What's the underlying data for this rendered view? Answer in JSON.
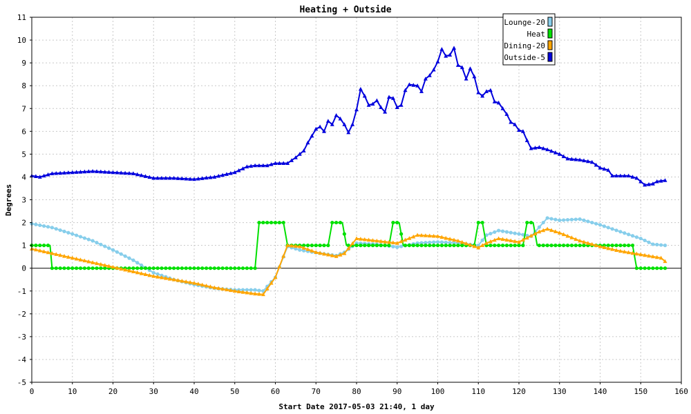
{
  "chart_data": {
    "type": "line",
    "title": "Heating + Outside",
    "xlabel": "Start Date 2017-05-03 21:40, 1 day",
    "ylabel": "Degrees",
    "xlim": [
      0,
      160
    ],
    "ylim": [
      -5,
      11
    ],
    "x_ticks": [
      0,
      10,
      20,
      30,
      40,
      50,
      60,
      70,
      80,
      90,
      100,
      110,
      120,
      130,
      140,
      150,
      160
    ],
    "y_ticks": [
      -5,
      -4,
      -3,
      -2,
      -1,
      0,
      1,
      2,
      3,
      4,
      5,
      6,
      7,
      8,
      9,
      10,
      11
    ],
    "grid": true,
    "legend_position": "top-right",
    "colors": {
      "background": "#ffffff",
      "plot_background": "#ffffff",
      "grid": "#c8c8c8",
      "zero_line": "#000000",
      "frame": "#000000"
    },
    "series": [
      {
        "name": "Lounge-20",
        "color": "#87ceeb",
        "marker": "circle",
        "points": [
          [
            0,
            1.95
          ],
          [
            5,
            1.78
          ],
          [
            10,
            1.5
          ],
          [
            15,
            1.2
          ],
          [
            20,
            0.8
          ],
          [
            25,
            0.35
          ],
          [
            30,
            -0.2
          ],
          [
            35,
            -0.5
          ],
          [
            40,
            -0.72
          ],
          [
            45,
            -0.88
          ],
          [
            50,
            -0.95
          ],
          [
            55,
            -0.95
          ],
          [
            57,
            -1.0
          ],
          [
            60,
            -0.4
          ],
          [
            63,
            0.95
          ],
          [
            66,
            0.8
          ],
          [
            70,
            0.68
          ],
          [
            75,
            0.55
          ],
          [
            77,
            0.7
          ],
          [
            80,
            1.1
          ],
          [
            85,
            1.05
          ],
          [
            90,
            0.92
          ],
          [
            95,
            1.1
          ],
          [
            100,
            1.15
          ],
          [
            105,
            1.1
          ],
          [
            110,
            1.0
          ],
          [
            112,
            1.45
          ],
          [
            115,
            1.65
          ],
          [
            120,
            1.5
          ],
          [
            123,
            1.4
          ],
          [
            127,
            2.2
          ],
          [
            130,
            2.1
          ],
          [
            135,
            2.15
          ],
          [
            140,
            1.9
          ],
          [
            145,
            1.6
          ],
          [
            150,
            1.3
          ],
          [
            153,
            1.05
          ],
          [
            156,
            1.0
          ]
        ]
      },
      {
        "name": "Heat",
        "color": "#00e000",
        "marker": "circle",
        "points": [
          [
            0,
            1
          ],
          [
            4.5,
            1
          ],
          [
            5,
            0
          ],
          [
            55,
            0
          ],
          [
            56,
            2
          ],
          [
            62,
            2
          ],
          [
            63,
            1
          ],
          [
            73,
            1
          ],
          [
            74,
            2
          ],
          [
            76.5,
            2
          ],
          [
            77.5,
            1
          ],
          [
            88,
            1
          ],
          [
            89,
            2
          ],
          [
            90.5,
            2
          ],
          [
            91.5,
            1
          ],
          [
            109,
            1
          ],
          [
            110,
            2
          ],
          [
            111,
            2
          ],
          [
            112,
            1
          ],
          [
            121,
            1
          ],
          [
            122,
            2
          ],
          [
            123.5,
            2
          ],
          [
            124.5,
            1
          ],
          [
            148,
            1
          ],
          [
            149,
            0
          ],
          [
            156,
            0
          ]
        ]
      },
      {
        "name": "Dining-20",
        "color": "#ffa500",
        "marker": "triangle",
        "points": [
          [
            0,
            0.85
          ],
          [
            5,
            0.65
          ],
          [
            10,
            0.45
          ],
          [
            15,
            0.25
          ],
          [
            20,
            0.05
          ],
          [
            25,
            -0.15
          ],
          [
            30,
            -0.35
          ],
          [
            35,
            -0.5
          ],
          [
            40,
            -0.65
          ],
          [
            45,
            -0.85
          ],
          [
            50,
            -1.0
          ],
          [
            55,
            -1.12
          ],
          [
            57,
            -1.15
          ],
          [
            60,
            -0.4
          ],
          [
            63,
            1.0
          ],
          [
            66,
            0.95
          ],
          [
            70,
            0.7
          ],
          [
            75,
            0.52
          ],
          [
            77,
            0.65
          ],
          [
            80,
            1.3
          ],
          [
            85,
            1.2
          ],
          [
            90,
            1.1
          ],
          [
            95,
            1.45
          ],
          [
            100,
            1.4
          ],
          [
            105,
            1.2
          ],
          [
            110,
            0.9
          ],
          [
            112,
            1.1
          ],
          [
            115,
            1.3
          ],
          [
            120,
            1.15
          ],
          [
            125,
            1.6
          ],
          [
            127,
            1.72
          ],
          [
            130,
            1.55
          ],
          [
            135,
            1.2
          ],
          [
            140,
            0.95
          ],
          [
            145,
            0.75
          ],
          [
            150,
            0.6
          ],
          [
            155,
            0.45
          ],
          [
            156,
            0.3
          ]
        ]
      },
      {
        "name": "Outside-5",
        "color": "#0000dd",
        "marker": "triangle",
        "points": [
          [
            0,
            4.05
          ],
          [
            2,
            4.0
          ],
          [
            5,
            4.15
          ],
          [
            10,
            4.2
          ],
          [
            15,
            4.25
          ],
          [
            20,
            4.2
          ],
          [
            25,
            4.15
          ],
          [
            30,
            3.95
          ],
          [
            35,
            3.95
          ],
          [
            40,
            3.9
          ],
          [
            45,
            4.0
          ],
          [
            50,
            4.2
          ],
          [
            53,
            4.45
          ],
          [
            55,
            4.5
          ],
          [
            58,
            4.5
          ],
          [
            60,
            4.6
          ],
          [
            63,
            4.6
          ],
          [
            65,
            4.85
          ],
          [
            67,
            5.15
          ],
          [
            68,
            5.5
          ],
          [
            70,
            6.1
          ],
          [
            71,
            6.2
          ],
          [
            72,
            6.0
          ],
          [
            73,
            6.45
          ],
          [
            74,
            6.3
          ],
          [
            75,
            6.7
          ],
          [
            76,
            6.55
          ],
          [
            77,
            6.3
          ],
          [
            78,
            5.95
          ],
          [
            79,
            6.3
          ],
          [
            80,
            6.95
          ],
          [
            81,
            7.85
          ],
          [
            82,
            7.55
          ],
          [
            83,
            7.15
          ],
          [
            84,
            7.2
          ],
          [
            85,
            7.35
          ],
          [
            86,
            7.05
          ],
          [
            87,
            6.85
          ],
          [
            88,
            7.5
          ],
          [
            89,
            7.45
          ],
          [
            90,
            7.05
          ],
          [
            91,
            7.15
          ],
          [
            92,
            7.8
          ],
          [
            93,
            8.05
          ],
          [
            95,
            8.0
          ],
          [
            96,
            7.75
          ],
          [
            97,
            8.3
          ],
          [
            98,
            8.45
          ],
          [
            99,
            8.7
          ],
          [
            100,
            9.05
          ],
          [
            101,
            9.6
          ],
          [
            102,
            9.3
          ],
          [
            103,
            9.35
          ],
          [
            104,
            9.65
          ],
          [
            105,
            8.9
          ],
          [
            106,
            8.8
          ],
          [
            107,
            8.3
          ],
          [
            108,
            8.75
          ],
          [
            109,
            8.4
          ],
          [
            110,
            7.7
          ],
          [
            111,
            7.55
          ],
          [
            112,
            7.75
          ],
          [
            113,
            7.8
          ],
          [
            114,
            7.3
          ],
          [
            115,
            7.25
          ],
          [
            116,
            7.0
          ],
          [
            117,
            6.75
          ],
          [
            118,
            6.4
          ],
          [
            119,
            6.3
          ],
          [
            120,
            6.05
          ],
          [
            121,
            6.0
          ],
          [
            122,
            5.6
          ],
          [
            123,
            5.25
          ],
          [
            125,
            5.3
          ],
          [
            127,
            5.2
          ],
          [
            130,
            5.0
          ],
          [
            132,
            4.8
          ],
          [
            135,
            4.75
          ],
          [
            138,
            4.65
          ],
          [
            140,
            4.4
          ],
          [
            142,
            4.3
          ],
          [
            143,
            4.05
          ],
          [
            145,
            4.05
          ],
          [
            147,
            4.05
          ],
          [
            149,
            3.95
          ],
          [
            150,
            3.8
          ],
          [
            151,
            3.65
          ],
          [
            153,
            3.7
          ],
          [
            154,
            3.8
          ],
          [
            156,
            3.85
          ]
        ]
      }
    ]
  }
}
